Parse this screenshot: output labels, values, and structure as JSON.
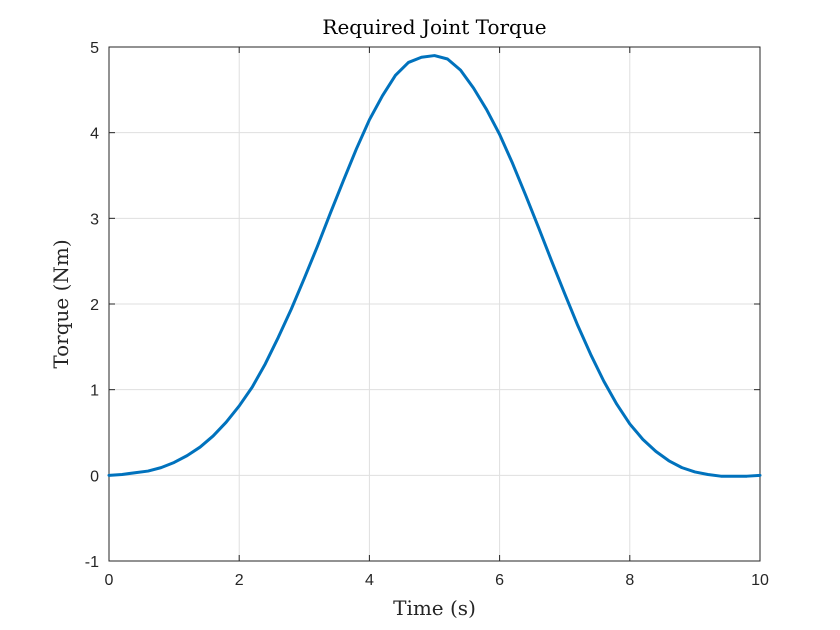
{
  "chart_data": {
    "type": "line",
    "title": "Required Joint Torque",
    "xlabel": "Time (s)",
    "ylabel": "Torque (Nm)",
    "xlim": [
      0,
      10
    ],
    "ylim": [
      -1,
      5
    ],
    "xticks": [
      0,
      2,
      4,
      6,
      8,
      10
    ],
    "yticks": [
      -1,
      0,
      1,
      2,
      3,
      4,
      5
    ],
    "grid": true,
    "legend": "none",
    "series": [
      {
        "color": "#0072BD",
        "x": [
          0,
          0.2,
          0.4,
          0.6,
          0.8,
          1.0,
          1.2,
          1.4,
          1.6,
          1.8,
          2.0,
          2.2,
          2.4,
          2.6,
          2.8,
          3.0,
          3.2,
          3.4,
          3.6,
          3.8,
          4.0,
          4.2,
          4.4,
          4.6,
          4.8,
          5.0,
          5.2,
          5.4,
          5.6,
          5.8,
          6.0,
          6.2,
          6.4,
          6.6,
          6.8,
          7.0,
          7.2,
          7.4,
          7.6,
          7.8,
          8.0,
          8.2,
          8.4,
          8.6,
          8.8,
          9.0,
          9.2,
          9.4,
          9.6,
          9.8,
          10.0
        ],
        "y": [
          0.0,
          0.01,
          0.03,
          0.05,
          0.09,
          0.15,
          0.23,
          0.33,
          0.46,
          0.62,
          0.81,
          1.03,
          1.3,
          1.61,
          1.94,
          2.3,
          2.67,
          3.06,
          3.44,
          3.81,
          4.15,
          4.43,
          4.67,
          4.82,
          4.88,
          4.9,
          4.86,
          4.73,
          4.52,
          4.27,
          3.98,
          3.64,
          3.27,
          2.89,
          2.5,
          2.12,
          1.75,
          1.41,
          1.1,
          0.83,
          0.6,
          0.42,
          0.28,
          0.17,
          0.09,
          0.04,
          0.01,
          -0.01,
          -0.01,
          -0.01,
          0.0
        ]
      }
    ]
  }
}
